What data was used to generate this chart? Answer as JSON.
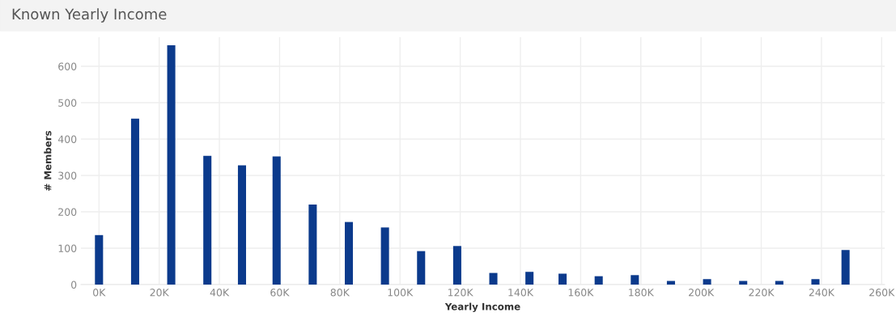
{
  "chart_data": {
    "type": "bar",
    "title": "Known Yearly Income",
    "xlabel": "Yearly Income",
    "ylabel": "# Members",
    "x": [
      0,
      12,
      24,
      36,
      47.5,
      59,
      71,
      83,
      95,
      107,
      119,
      131,
      143,
      154,
      166,
      178,
      190,
      202,
      214,
      226,
      238,
      248
    ],
    "values": [
      136,
      456,
      658,
      354,
      328,
      352,
      220,
      172,
      157,
      92,
      106,
      32,
      35,
      30,
      23,
      26,
      10,
      15,
      10,
      10,
      15,
      95
    ],
    "color": "#0b3a8c",
    "xlim": [
      -6,
      261
    ],
    "xticks": [
      {
        "value": 0,
        "label": "0K"
      },
      {
        "value": 20,
        "label": "20K"
      },
      {
        "value": 40,
        "label": "40K"
      },
      {
        "value": 60,
        "label": "60K"
      },
      {
        "value": 80,
        "label": "80K"
      },
      {
        "value": 100,
        "label": "100K"
      },
      {
        "value": 120,
        "label": "120K"
      },
      {
        "value": 140,
        "label": "140K"
      },
      {
        "value": 160,
        "label": "160K"
      },
      {
        "value": 180,
        "label": "180K"
      },
      {
        "value": 200,
        "label": "200K"
      },
      {
        "value": 220,
        "label": "220K"
      },
      {
        "value": 240,
        "label": "240K"
      },
      {
        "value": 260,
        "label": "260K"
      }
    ],
    "ylim": [
      0,
      680
    ],
    "yticks": [
      0,
      100,
      200,
      300,
      400,
      500,
      600
    ],
    "grid": true
  }
}
